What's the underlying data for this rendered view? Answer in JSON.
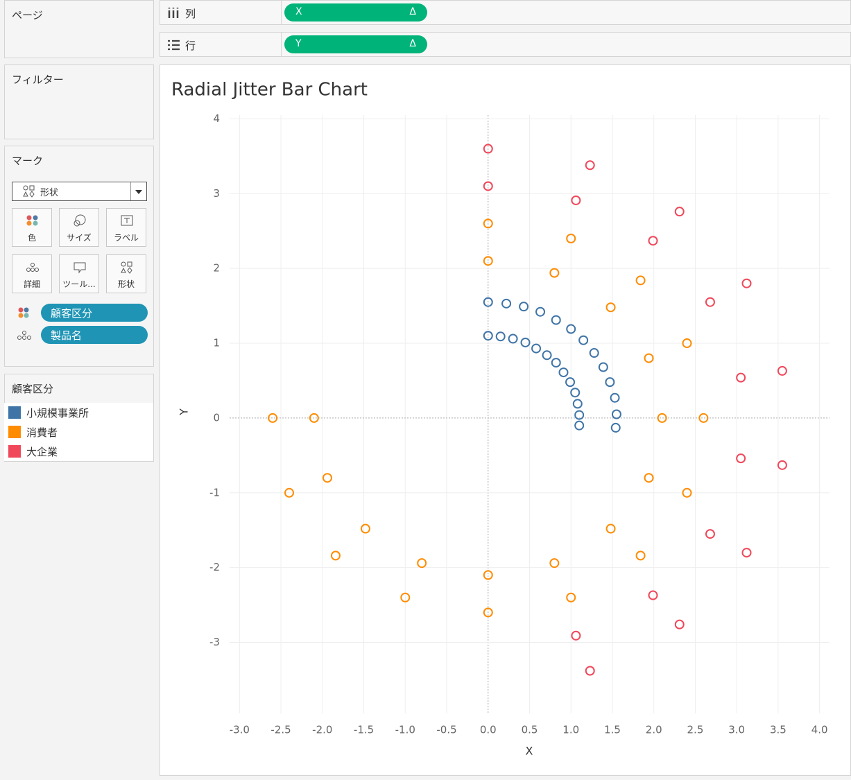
{
  "sidebar": {
    "pages_title": "ページ",
    "filters_title": "フィルター",
    "marks_title": "マーク",
    "mark_type": "形状",
    "mark_buttons": [
      "色",
      "サイズ",
      "ラベル",
      "詳細",
      "ツール...",
      "形状"
    ],
    "mark_pills": [
      "顧客区分",
      "製品名"
    ],
    "legend_title": "顧客区分"
  },
  "shelves": {
    "columns_label": "列",
    "columns_pill": "X",
    "rows_label": "行",
    "rows_pill": "Y",
    "pill_icon": "Δ"
  },
  "chart_data": {
    "type": "scatter",
    "title": "Radial Jitter Bar Chart",
    "x_label": "X",
    "y_label": "Y",
    "xlim": [
      -3.12,
      4.12
    ],
    "ylim": [
      -3.95,
      4.05
    ],
    "xticks": [
      {
        "value": -3,
        "label": "-3.0"
      },
      -2.5,
      {
        "value": -2,
        "label": "-2.0"
      },
      -1.5,
      {
        "value": -1,
        "label": "-1.0"
      },
      -0.5,
      {
        "value": 0,
        "label": "0.0"
      },
      0.5,
      {
        "value": 1,
        "label": "1.0"
      },
      1.5,
      {
        "value": 2,
        "label": "2.0"
      },
      2.5,
      {
        "value": 3,
        "label": "3.0"
      },
      3.5,
      {
        "value": 4,
        "label": "4.0"
      }
    ],
    "yticks": [
      4,
      3,
      2,
      1,
      0,
      -1,
      -2,
      -3
    ],
    "grid": true,
    "series": [
      {
        "name": "小規模事業所",
        "color": "#3f74a6",
        "x": [
          0,
          0.15,
          0.3,
          0.45,
          0.58,
          0.71,
          0.82,
          0.91,
          0.99,
          1.05,
          1.08,
          1.1,
          1.1,
          0,
          0.22,
          0.43,
          0.63,
          0.82,
          1.0,
          1.15,
          1.28,
          1.39,
          1.47,
          1.53,
          1.55,
          1.54
        ],
        "y": [
          1.1,
          1.09,
          1.06,
          1.01,
          0.93,
          0.84,
          0.74,
          0.61,
          0.48,
          0.34,
          0.19,
          0.04,
          -0.1,
          1.55,
          1.53,
          1.49,
          1.42,
          1.31,
          1.19,
          1.04,
          0.87,
          0.68,
          0.48,
          0.27,
          0.05,
          -0.13
        ]
      },
      {
        "name": "消費者",
        "color": "#ff8c00",
        "x": [
          0,
          0.8,
          1.48,
          1.94,
          2.1,
          1.94,
          1.48,
          0.8,
          0,
          -0.8,
          -1.48,
          -1.94,
          -2.1,
          0,
          1.0,
          1.84,
          2.4,
          2.6,
          2.4,
          1.84,
          1.0,
          0,
          -1.0,
          -1.84,
          -2.4,
          -2.6
        ],
        "y": [
          2.1,
          1.94,
          1.48,
          0.8,
          0,
          -0.8,
          -1.48,
          -1.94,
          -2.1,
          -1.94,
          -1.48,
          -0.8,
          0,
          2.6,
          2.4,
          1.84,
          1.0,
          0,
          -1.0,
          -1.84,
          -2.4,
          -2.6,
          -2.4,
          -1.84,
          -1.0,
          0
        ]
      },
      {
        "name": "大企業",
        "color": "#f0475a",
        "x": [
          0,
          1.06,
          1.99,
          2.68,
          3.05,
          3.05,
          2.68,
          1.99,
          1.06,
          0,
          1.23,
          2.31,
          3.12,
          3.55,
          3.55,
          3.12,
          2.31,
          1.23
        ],
        "y": [
          3.1,
          2.91,
          2.37,
          1.55,
          0.54,
          -0.54,
          -1.55,
          -2.37,
          -2.91,
          3.6,
          3.38,
          2.76,
          1.8,
          0.63,
          -0.63,
          -1.8,
          -2.76,
          -3.38
        ]
      }
    ]
  }
}
